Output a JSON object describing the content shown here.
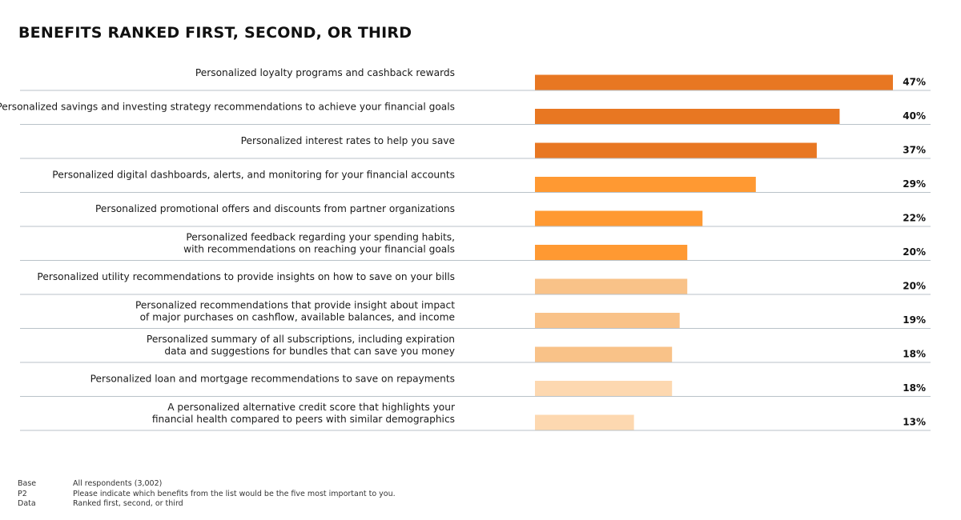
{
  "chart_data": {
    "type": "bar",
    "orientation": "horizontal",
    "title": "BENEFITS RANKED FIRST, SECOND, OR THIRD",
    "xlim": [
      0,
      47
    ],
    "value_suffix": "%",
    "colors": [
      "#E87722",
      "#FF9932",
      "#F9C288",
      "#FDD8B0"
    ],
    "items": [
      {
        "label": [
          "Personalized loyalty programs and cashback rewards"
        ],
        "value": 47,
        "color": "#E87722"
      },
      {
        "label": [
          "Personalized savings and investing strategy recommendations to achieve your financial goals"
        ],
        "value": 40,
        "color": "#E87722"
      },
      {
        "label": [
          "Personalized interest rates to help you save"
        ],
        "value": 37,
        "color": "#E87722"
      },
      {
        "label": [
          "Personalized digital dashboards, alerts, and monitoring for your financial accounts"
        ],
        "value": 29,
        "color": "#FF9932"
      },
      {
        "label": [
          "Personalized promotional offers and discounts from partner organizations"
        ],
        "value": 22,
        "color": "#FF9932"
      },
      {
        "label": [
          "Personalized feedback regarding your spending habits,",
          "with recommendations on reaching your financial goals"
        ],
        "value": 20,
        "color": "#FF9932"
      },
      {
        "label": [
          "Personalized utility recommendations to provide insights on how to save on your bills"
        ],
        "value": 20,
        "color": "#F9C288"
      },
      {
        "label": [
          "Personalized recommendations that provide insight about impact",
          "of major purchases on cashflow, available balances, and income"
        ],
        "value": 19,
        "color": "#F9C288"
      },
      {
        "label": [
          "Personalized summary of all subscriptions, including expiration",
          "data and suggestions for bundles that can save you money"
        ],
        "value": 18,
        "color": "#F9C288"
      },
      {
        "label": [
          "Personalized loan and mortgage recommendations to save on repayments"
        ],
        "value": 18,
        "color": "#FDD8B0"
      },
      {
        "label": [
          "A personalized alternative credit score that highlights your",
          "financial health compared to peers with similar demographics"
        ],
        "value": 13,
        "color": "#FDD8B0"
      }
    ]
  },
  "footer": [
    {
      "key": "Base",
      "text": "All respondents (3,002)"
    },
    {
      "key": "P2",
      "text": "Please indicate which benefits from the list would be the five most important to you."
    },
    {
      "key": "Data",
      "text": "Ranked first, second, or third"
    }
  ]
}
